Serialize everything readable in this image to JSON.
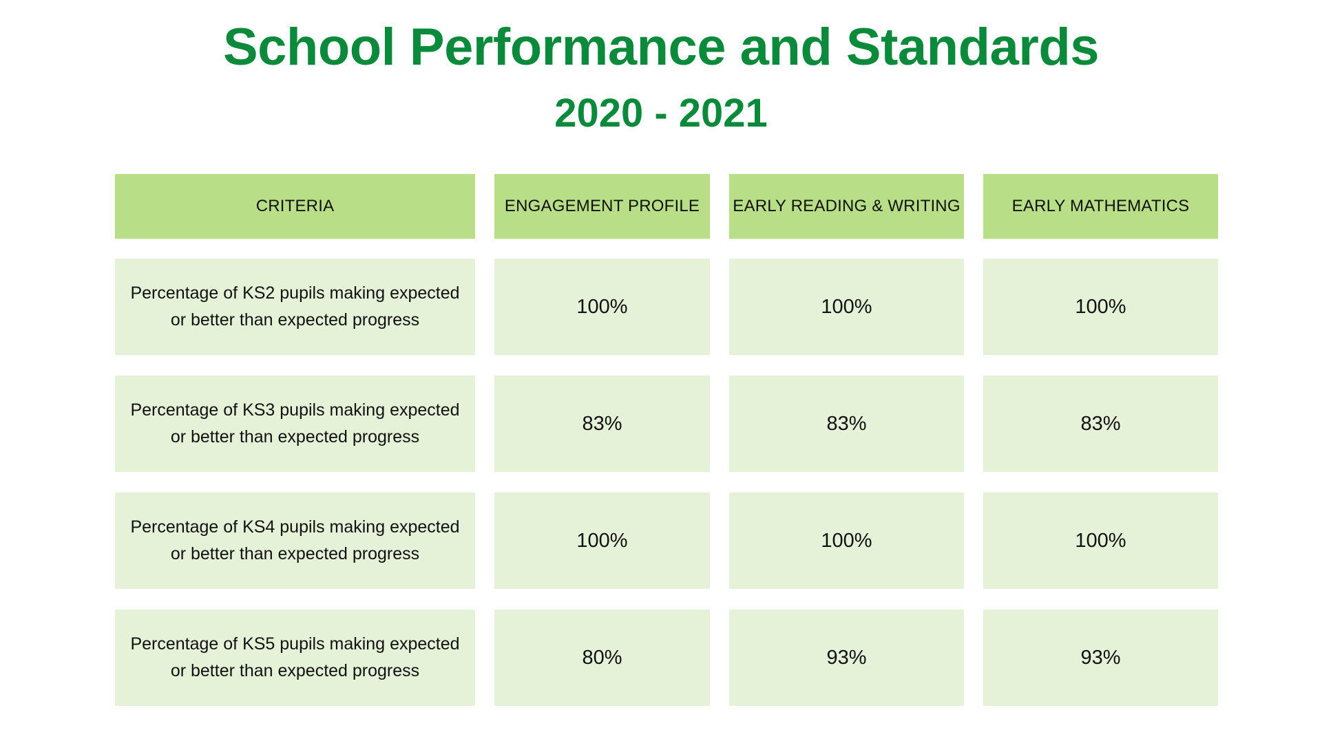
{
  "header": {
    "title": "School Performance and Standards",
    "subtitle": "2020 - 2021"
  },
  "table": {
    "columns": [
      "CRITERIA",
      "ENGAGEMENT PROFILE",
      "EARLY READING & WRITING",
      "EARLY MATHEMATICS"
    ],
    "rows": [
      {
        "criteria": "Percentage of KS2 pupils making expected or better than expected progress",
        "engagement_profile": "100%",
        "early_reading_writing": "100%",
        "early_mathematics": "100%"
      },
      {
        "criteria": "Percentage of KS3 pupils making expected or better than expected progress",
        "engagement_profile": "83%",
        "early_reading_writing": "83%",
        "early_mathematics": "83%"
      },
      {
        "criteria": "Percentage of KS4 pupils making expected or better than expected progress",
        "engagement_profile": "100%",
        "early_reading_writing": "100%",
        "early_mathematics": "100%"
      },
      {
        "criteria": "Percentage of KS5 pupils making expected or better than expected progress",
        "engagement_profile": "80%",
        "early_reading_writing": "93%",
        "early_mathematics": "93%"
      }
    ]
  },
  "colors": {
    "title": "#0b8a3c",
    "header_cell": "#b8df87",
    "body_cell": "#e6f2d8"
  }
}
